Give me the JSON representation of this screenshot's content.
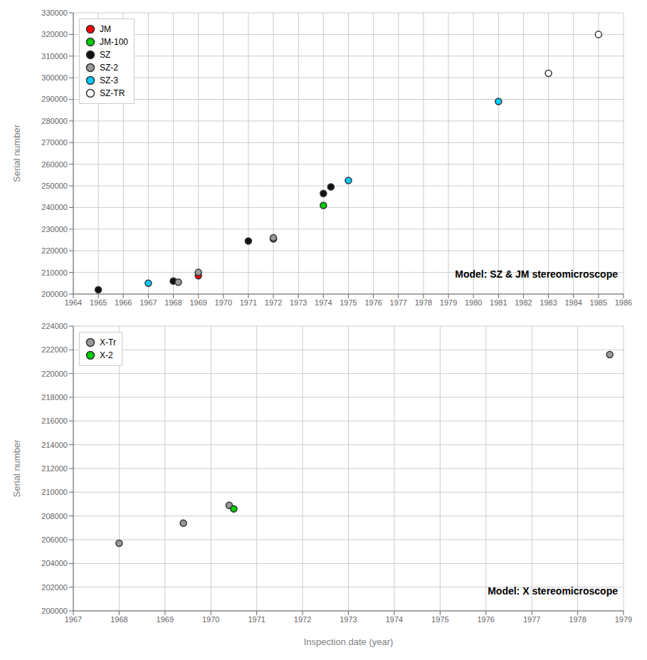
{
  "chart_data": [
    {
      "type": "scatter",
      "annotation": "Model: SZ & JM stereomicroscope",
      "y_label": "Serial number",
      "xlim": [
        1964,
        1986
      ],
      "ylim": [
        200000,
        330000
      ],
      "xticks": [
        1964,
        1965,
        1966,
        1967,
        1968,
        1969,
        1970,
        1971,
        1972,
        1973,
        1974,
        1975,
        1976,
        1977,
        1978,
        1979,
        1980,
        1981,
        1982,
        1983,
        1984,
        1985,
        1986
      ],
      "yticks": [
        200000,
        210000,
        220000,
        230000,
        240000,
        250000,
        260000,
        270000,
        280000,
        290000,
        300000,
        310000,
        320000,
        330000
      ],
      "grid": true,
      "legend": "upper left",
      "series": [
        {
          "name": "JM",
          "color": "#ff0000",
          "x": [
            1969,
            1972
          ],
          "values": [
            208500,
            225500
          ]
        },
        {
          "name": "JM-100",
          "color": "#00cc00",
          "x": [
            1974
          ],
          "values": [
            241000
          ]
        },
        {
          "name": "SZ",
          "color": "#111111",
          "x": [
            1965,
            1968,
            1971,
            1974,
            1974.3
          ],
          "values": [
            202000,
            206000,
            224500,
            246500,
            249500
          ]
        },
        {
          "name": "SZ-2",
          "color": "#999999",
          "x": [
            1968.2,
            1969,
            1972
          ],
          "values": [
            205500,
            210000,
            226000
          ]
        },
        {
          "name": "SZ-3",
          "color": "#00ccff",
          "x": [
            1967,
            1975,
            1981
          ],
          "values": [
            205000,
            252500,
            289000
          ]
        },
        {
          "name": "SZ-TR",
          "color": "#ffffff",
          "x": [
            1983,
            1985
          ],
          "values": [
            302000,
            320000
          ]
        }
      ]
    },
    {
      "type": "scatter",
      "annotation": "Model: X stereomicroscope",
      "y_label": "Serial number",
      "x_label": "Inspection date (year)",
      "xlim": [
        1967,
        1979
      ],
      "ylim": [
        200000,
        224000
      ],
      "xticks": [
        1967,
        1968,
        1969,
        1970,
        1971,
        1972,
        1973,
        1974,
        1975,
        1976,
        1977,
        1978,
        1979
      ],
      "yticks": [
        200000,
        202000,
        204000,
        206000,
        208000,
        210000,
        212000,
        214000,
        216000,
        218000,
        220000,
        222000,
        224000
      ],
      "grid": true,
      "legend": "upper left",
      "series": [
        {
          "name": "X-Tr",
          "color": "#999999",
          "x": [
            1968,
            1969.4,
            1970.4,
            1978.7
          ],
          "values": [
            205700,
            207400,
            208900,
            221600
          ]
        },
        {
          "name": "X-2",
          "color": "#00cc00",
          "x": [
            1970.5
          ],
          "values": [
            208600
          ]
        }
      ]
    }
  ]
}
